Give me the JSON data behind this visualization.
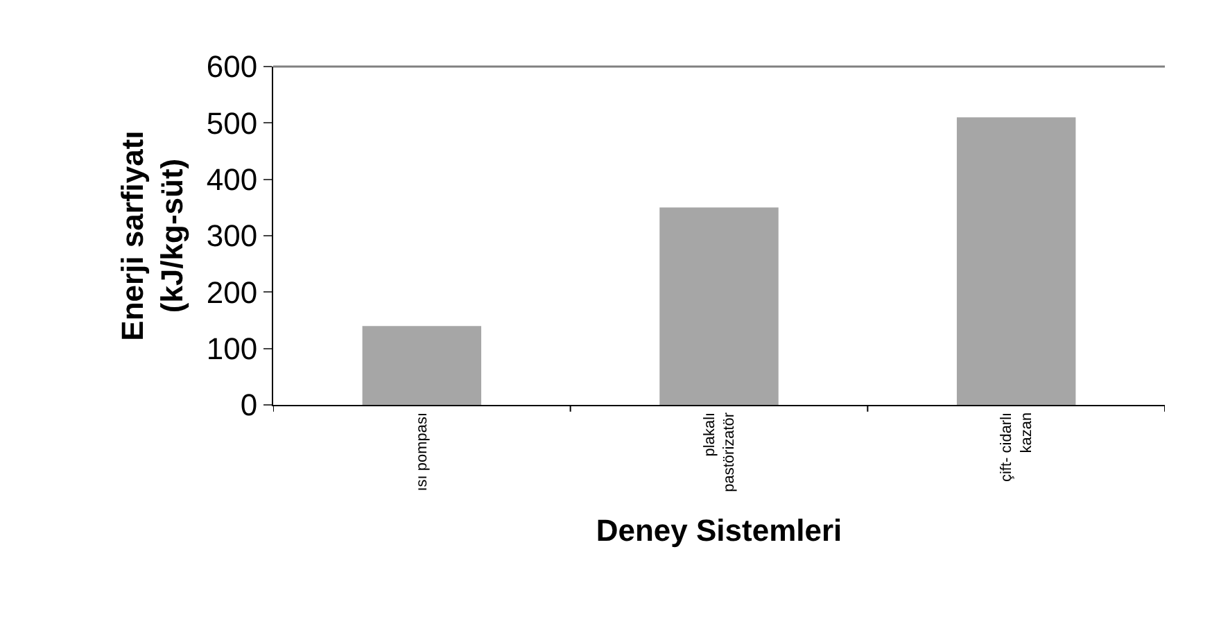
{
  "chart_data": {
    "type": "bar",
    "xlabel": "Deney Sistemleri",
    "ylabel": "Enerji sarfiyatı\n(kJ/kg-süt)",
    "categories": [
      "ısı pompası",
      "plakalı\npastörizatör",
      "çift- cidarlı\nkazan"
    ],
    "values": [
      140,
      350,
      510
    ],
    "color": "#a6a6a6",
    "ylim": [
      0,
      600
    ],
    "yticks": [
      0,
      100,
      200,
      300,
      400,
      500,
      600
    ]
  }
}
